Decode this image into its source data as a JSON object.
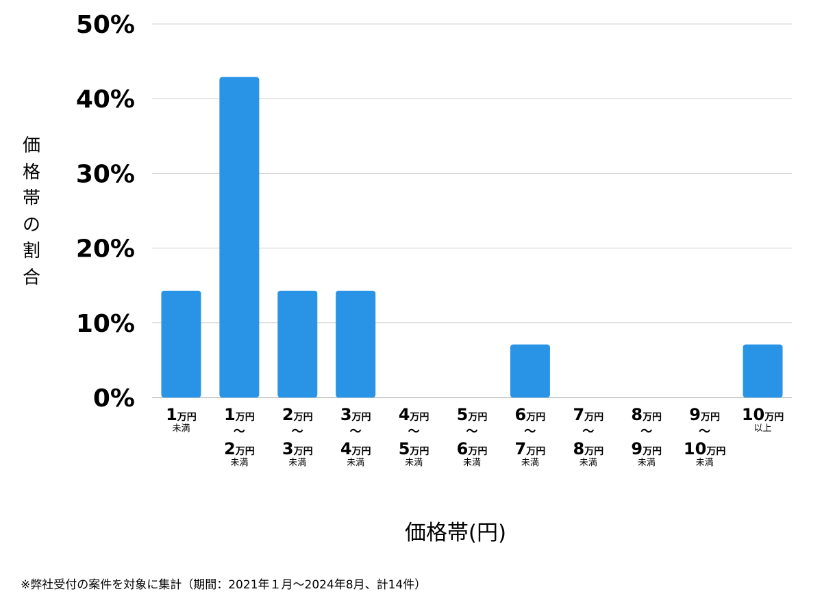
{
  "chart_data": {
    "type": "bar",
    "title": "",
    "xlabel": "価格帯(円)",
    "ylabel": "価格帯の割合",
    "ylim": [
      0,
      50
    ],
    "yticks": [
      "0%",
      "10%",
      "20%",
      "30%",
      "40%",
      "50%"
    ],
    "grid": true,
    "bar_color": "#2994e6",
    "categories": [
      {
        "from": "1",
        "from_unit": "万円",
        "to": "",
        "to_unit": "",
        "suffix": "未満"
      },
      {
        "from": "1",
        "from_unit": "万円",
        "to": "2",
        "to_unit": "万円",
        "suffix": "未満"
      },
      {
        "from": "2",
        "from_unit": "万円",
        "to": "3",
        "to_unit": "万円",
        "suffix": "未満"
      },
      {
        "from": "3",
        "from_unit": "万円",
        "to": "4",
        "to_unit": "万円",
        "suffix": "未満"
      },
      {
        "from": "4",
        "from_unit": "万円",
        "to": "5",
        "to_unit": "万円",
        "suffix": "未満"
      },
      {
        "from": "5",
        "from_unit": "万円",
        "to": "6",
        "to_unit": "万円",
        "suffix": "未満"
      },
      {
        "from": "6",
        "from_unit": "万円",
        "to": "7",
        "to_unit": "万円",
        "suffix": "未満"
      },
      {
        "from": "7",
        "from_unit": "万円",
        "to": "8",
        "to_unit": "万円",
        "suffix": "未満"
      },
      {
        "from": "8",
        "from_unit": "万円",
        "to": "9",
        "to_unit": "万円",
        "suffix": "未満"
      },
      {
        "from": "9",
        "from_unit": "万円",
        "to": "10",
        "to_unit": "万円",
        "suffix": "未満"
      },
      {
        "from": "10",
        "from_unit": "万円",
        "to": "",
        "to_unit": "",
        "suffix": "以上"
      }
    ],
    "range_mark": "〜",
    "values": [
      14.3,
      42.9,
      14.3,
      14.3,
      0,
      0,
      7.1,
      0,
      0,
      0,
      7.1
    ]
  },
  "footnote": "※弊社受付の案件を対象に集計（期間：2021年１月〜2024年8月、計14件）"
}
